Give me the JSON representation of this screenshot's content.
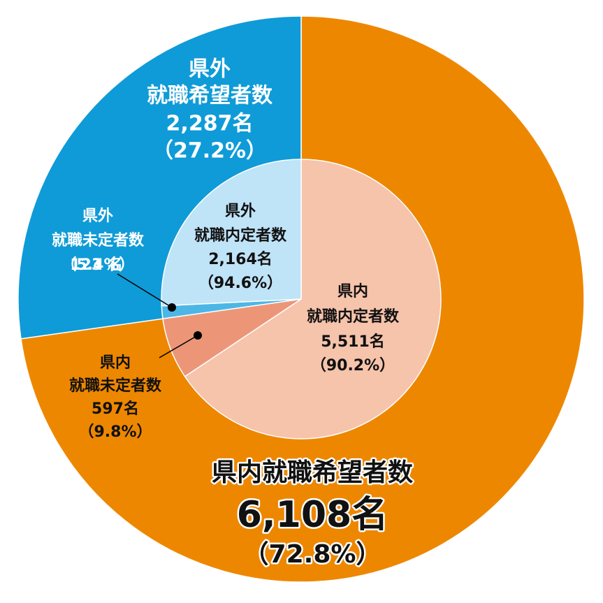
{
  "chart_data": {
    "type": "nested-pie",
    "rings": [
      {
        "categories": [
          [
            "県内就職希望者数"
          ],
          [
            "県外",
            "就職希望者数"
          ]
        ],
        "values": [
          6108,
          2287
        ],
        "value_labels": [
          "6,108名",
          "2,287名"
        ],
        "percents": [
          72.8,
          27.2
        ],
        "percent_labels": [
          "（72.8%）",
          "（27.2%）"
        ],
        "colors": [
          "#ee8700",
          "#0f9bd7"
        ]
      },
      {
        "categories": [
          [
            "県内",
            "就職内定者数"
          ],
          [
            "県内",
            "就職未定者数"
          ],
          [
            "県外",
            "就職未定者数"
          ],
          [
            "県外",
            "就職内定者数"
          ]
        ],
        "values": [
          5511,
          597,
          123,
          2164
        ],
        "value_labels": [
          "5,511名",
          "597名",
          "123 名",
          "2,164名"
        ],
        "percents": [
          90.2,
          9.8,
          5.4,
          94.6
        ],
        "percent_labels": [
          "（90.2%）",
          "（9.8%）",
          "（5.4%）",
          "（94.6%）"
        ],
        "colors": [
          "#f6c3ab",
          "#ec9677",
          "#4cb7e6",
          "#bfe3f7"
        ]
      }
    ]
  }
}
